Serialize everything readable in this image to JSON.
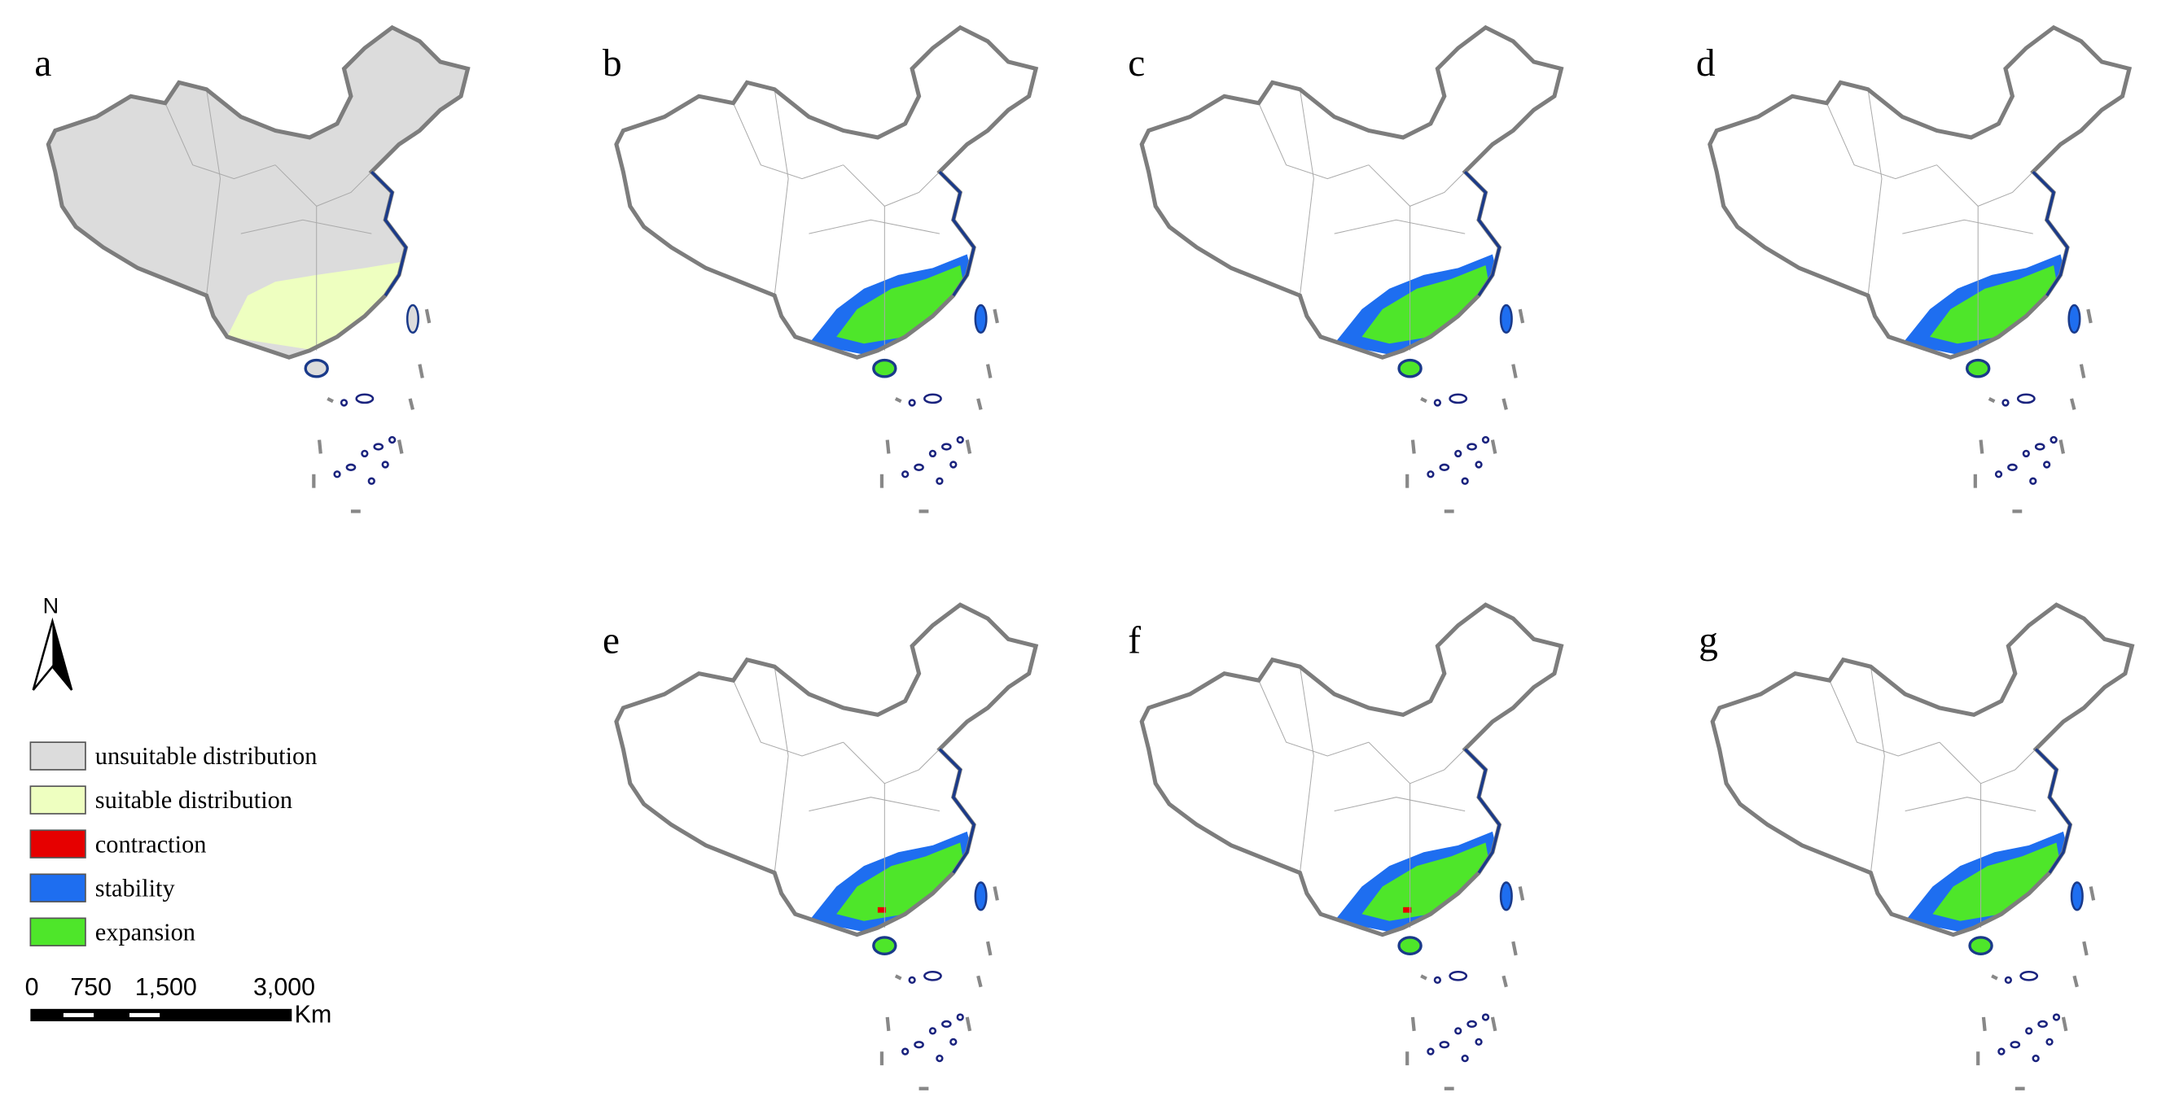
{
  "panels": [
    {
      "label": "a"
    },
    {
      "label": "b"
    },
    {
      "label": "c"
    },
    {
      "label": "d"
    },
    {
      "label": "e"
    },
    {
      "label": "f"
    },
    {
      "label": "g"
    }
  ],
  "north": "N",
  "legend": [
    {
      "label": "unsuitable distribution",
      "color": "#dcdcdc"
    },
    {
      "label": "suitable distribution",
      "color": "#eeffc0"
    },
    {
      "label": "contraction",
      "color": "#e60000"
    },
    {
      "label": "stability",
      "color": "#1e6ef0"
    },
    {
      "label": "expansion",
      "color": "#4ee62a"
    }
  ],
  "scale_bar": {
    "labels": [
      "0",
      "750",
      "1,500",
      "3,000"
    ],
    "unit": "Km"
  }
}
